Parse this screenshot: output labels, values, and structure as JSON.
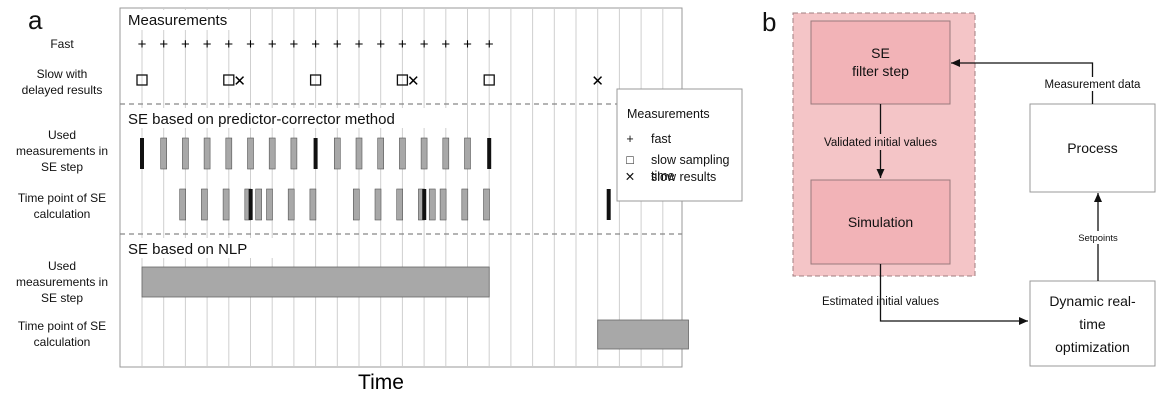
{
  "panel_a": {
    "letter": "a",
    "rows": {
      "fast": "Fast",
      "slow_1": "Slow with",
      "slow_2": "delayed results",
      "used1_1": "Used",
      "used1_2": "measurements in",
      "used1_3": "SE step",
      "tp1_1": "Time point of SE",
      "tp1_2": "calculation",
      "used2_1": "Used",
      "used2_2": "measurements in",
      "used2_3": "SE step",
      "tp2_1": "Time point of  SE",
      "tp2_2": "calculation"
    },
    "sections": {
      "measurements": "Measurements",
      "pc": "SE based on predictor-corrector method",
      "nlp": "SE based on NLP"
    },
    "legend": {
      "title": "Measurements",
      "items": [
        {
          "symbol": "+",
          "label": "fast"
        },
        {
          "symbol": "□",
          "label": "slow sampling"
        },
        {
          "symbol": "",
          "label": "time"
        },
        {
          "symbol": "✕",
          "label": "slow results"
        }
      ]
    },
    "xlabel": "Time",
    "symbols": {
      "plus": "+",
      "square": "□",
      "cross": "✕"
    },
    "timeline": {
      "fast_count": 17,
      "slow_sampling_steps": [
        0,
        4,
        8,
        12,
        16
      ],
      "slow_result_steps": [
        4.5,
        12.5,
        21
      ],
      "used_pc_thick_steps": [
        0,
        8,
        16
      ],
      "used_pc_thin_steps": [
        1,
        2,
        3,
        4,
        5,
        6,
        7,
        9,
        10,
        11,
        12,
        13,
        14,
        15
      ],
      "tp_pc_thin_steps": [
        1,
        2,
        3,
        4,
        4.5,
        5,
        6,
        7,
        9,
        10,
        11,
        12,
        12.5,
        13,
        14,
        15
      ],
      "tp_pc_thick_steps": [
        4.5,
        12.5,
        21
      ],
      "nlp_used_range": [
        0,
        16
      ],
      "nlp_calc_range": [
        21,
        25
      ]
    }
  },
  "panel_b": {
    "letter": "b",
    "se_filter_1": "SE",
    "se_filter_2": "filter step",
    "validated": "Validated initial values",
    "simulation": "Simulation",
    "estimated": "Estimated initial values",
    "process": "Process",
    "measurement_data": "Measurement data",
    "setpoints": "Setpoints",
    "dro_1": "Dynamic real-",
    "dro_2": "time",
    "dro_3": "optimization"
  },
  "colors": {
    "highlight_fill": "#f4c5c7",
    "highlight_box": "#f2b3b7",
    "highlight_border": "#b58a8c",
    "bar_gray": "#a8a8a8",
    "grid": "#cfcfcf"
  }
}
